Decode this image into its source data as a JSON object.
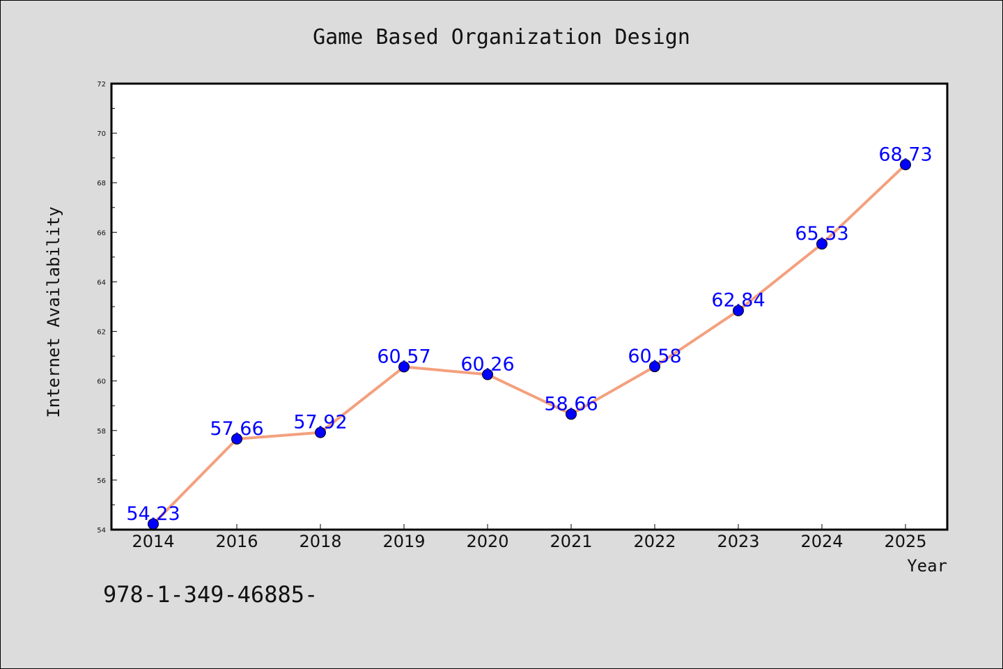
{
  "chart_data": {
    "type": "line",
    "title": "Game Based Organization Design",
    "xlabel": "Year",
    "ylabel": "Internet Availability",
    "categories": [
      "2014",
      "2016",
      "2018",
      "2019",
      "2020",
      "2021",
      "2022",
      "2023",
      "2024",
      "2025"
    ],
    "series": [
      {
        "values": [
          54.23,
          57.66,
          57.92,
          60.57,
          60.26,
          58.66,
          60.58,
          62.84,
          65.53,
          68.73
        ],
        "data_labels": [
          "54.23",
          "57.66",
          "57.92",
          "60.57",
          "60.26",
          "58.66",
          "60.58",
          "62.84",
          "65.53",
          "68.73"
        ],
        "line_color": "#f4a07e",
        "marker_color": "#0000ff"
      }
    ],
    "ylim": [
      54,
      72
    ],
    "yticks": [
      "54",
      "56",
      "58",
      "60",
      "62",
      "64",
      "66",
      "68",
      "70",
      "72"
    ],
    "grid": false,
    "legend": "none"
  },
  "footnote": "978-1-349-46885-",
  "colors": {
    "background": "#dcdcdc",
    "plot_background": "#ffffff",
    "line": "#f4a07e",
    "marker": "#0000ff",
    "data_label": "#0000ff"
  }
}
